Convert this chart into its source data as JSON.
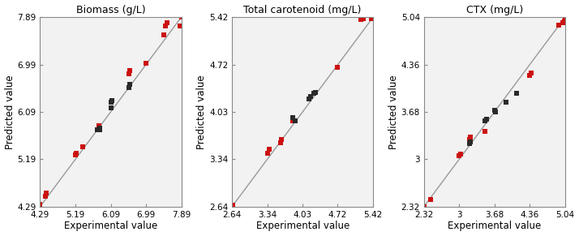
{
  "plots": [
    {
      "title": "Biomass (g/L)",
      "xlabel": "Experimental value",
      "ylabel": "Predicted value",
      "xlim": [
        4.29,
        7.89
      ],
      "ylim": [
        4.29,
        7.89
      ],
      "xticks": [
        4.29,
        5.19,
        6.09,
        6.99,
        7.89
      ],
      "yticks": [
        4.29,
        5.19,
        6.09,
        6.99,
        7.89
      ],
      "line": [
        4.29,
        7.89
      ],
      "black_points": [
        [
          5.75,
          5.75
        ],
        [
          5.8,
          5.78
        ],
        [
          5.82,
          5.75
        ],
        [
          6.09,
          6.27
        ],
        [
          6.12,
          6.3
        ],
        [
          6.55,
          6.55
        ],
        [
          6.58,
          6.62
        ],
        [
          6.09,
          6.17
        ]
      ],
      "red_points": [
        [
          4.29,
          4.34
        ],
        [
          4.42,
          4.48
        ],
        [
          4.45,
          4.55
        ],
        [
          5.19,
          5.27
        ],
        [
          5.22,
          5.3
        ],
        [
          5.38,
          5.42
        ],
        [
          5.78,
          5.82
        ],
        [
          6.55,
          6.82
        ],
        [
          6.58,
          6.88
        ],
        [
          6.99,
          7.02
        ],
        [
          7.45,
          7.55
        ],
        [
          7.48,
          7.72
        ],
        [
          7.52,
          7.78
        ],
        [
          7.89,
          7.89
        ],
        [
          7.85,
          7.72
        ]
      ]
    },
    {
      "title": "Total carotenoid (mg/L)",
      "xlabel": "Experimental value",
      "ylabel": "Predicted value",
      "xlim": [
        2.64,
        5.42
      ],
      "ylim": [
        2.64,
        5.42
      ],
      "xticks": [
        2.64,
        3.34,
        4.03,
        4.72,
        5.42
      ],
      "yticks": [
        2.64,
        3.34,
        4.03,
        4.72,
        5.42
      ],
      "line": [
        2.64,
        5.42
      ],
      "black_points": [
        [
          3.84,
          3.95
        ],
        [
          3.88,
          3.9
        ],
        [
          4.15,
          4.22
        ],
        [
          4.18,
          4.25
        ],
        [
          4.25,
          4.3
        ],
        [
          4.28,
          4.32
        ]
      ],
      "red_points": [
        [
          2.64,
          2.64
        ],
        [
          2.66,
          2.66
        ],
        [
          3.34,
          3.42
        ],
        [
          3.38,
          3.48
        ],
        [
          3.6,
          3.58
        ],
        [
          3.62,
          3.62
        ],
        [
          3.84,
          3.9
        ],
        [
          4.72,
          4.68
        ],
        [
          5.18,
          5.38
        ],
        [
          5.22,
          5.4
        ],
        [
          5.38,
          5.4
        ],
        [
          5.42,
          5.42
        ]
      ]
    },
    {
      "title": "CTX (mg/L)",
      "xlabel": "Experimental value",
      "ylabel": "Predicted value",
      "xlim": [
        2.32,
        5.04
      ],
      "ylim": [
        2.32,
        5.04
      ],
      "xticks": [
        2.32,
        3.0,
        3.68,
        4.36,
        5.04
      ],
      "yticks": [
        2.32,
        3.0,
        3.68,
        4.36,
        5.04
      ],
      "line": [
        2.32,
        5.04
      ],
      "black_points": [
        [
          3.2,
          3.22
        ],
        [
          3.22,
          3.25
        ],
        [
          3.5,
          3.55
        ],
        [
          3.52,
          3.58
        ],
        [
          3.68,
          3.7
        ],
        [
          3.7,
          3.68
        ],
        [
          3.9,
          3.82
        ],
        [
          4.1,
          3.95
        ]
      ],
      "red_points": [
        [
          2.32,
          2.32
        ],
        [
          2.45,
          2.42
        ],
        [
          3.0,
          3.05
        ],
        [
          3.02,
          3.07
        ],
        [
          3.2,
          3.28
        ],
        [
          3.22,
          3.32
        ],
        [
          3.5,
          3.4
        ],
        [
          4.36,
          4.2
        ],
        [
          4.38,
          4.24
        ],
        [
          4.92,
          4.92
        ],
        [
          5.0,
          4.96
        ],
        [
          5.02,
          4.98
        ],
        [
          5.04,
          5.02
        ]
      ]
    }
  ],
  "black_color": "#2a2a2a",
  "red_color": "#cc1111",
  "line_color": "#999999",
  "bg_color": "#f2f2f2",
  "marker_size": 4.5,
  "title_fontsize": 9,
  "label_fontsize": 8.5,
  "tick_fontsize": 7.5
}
